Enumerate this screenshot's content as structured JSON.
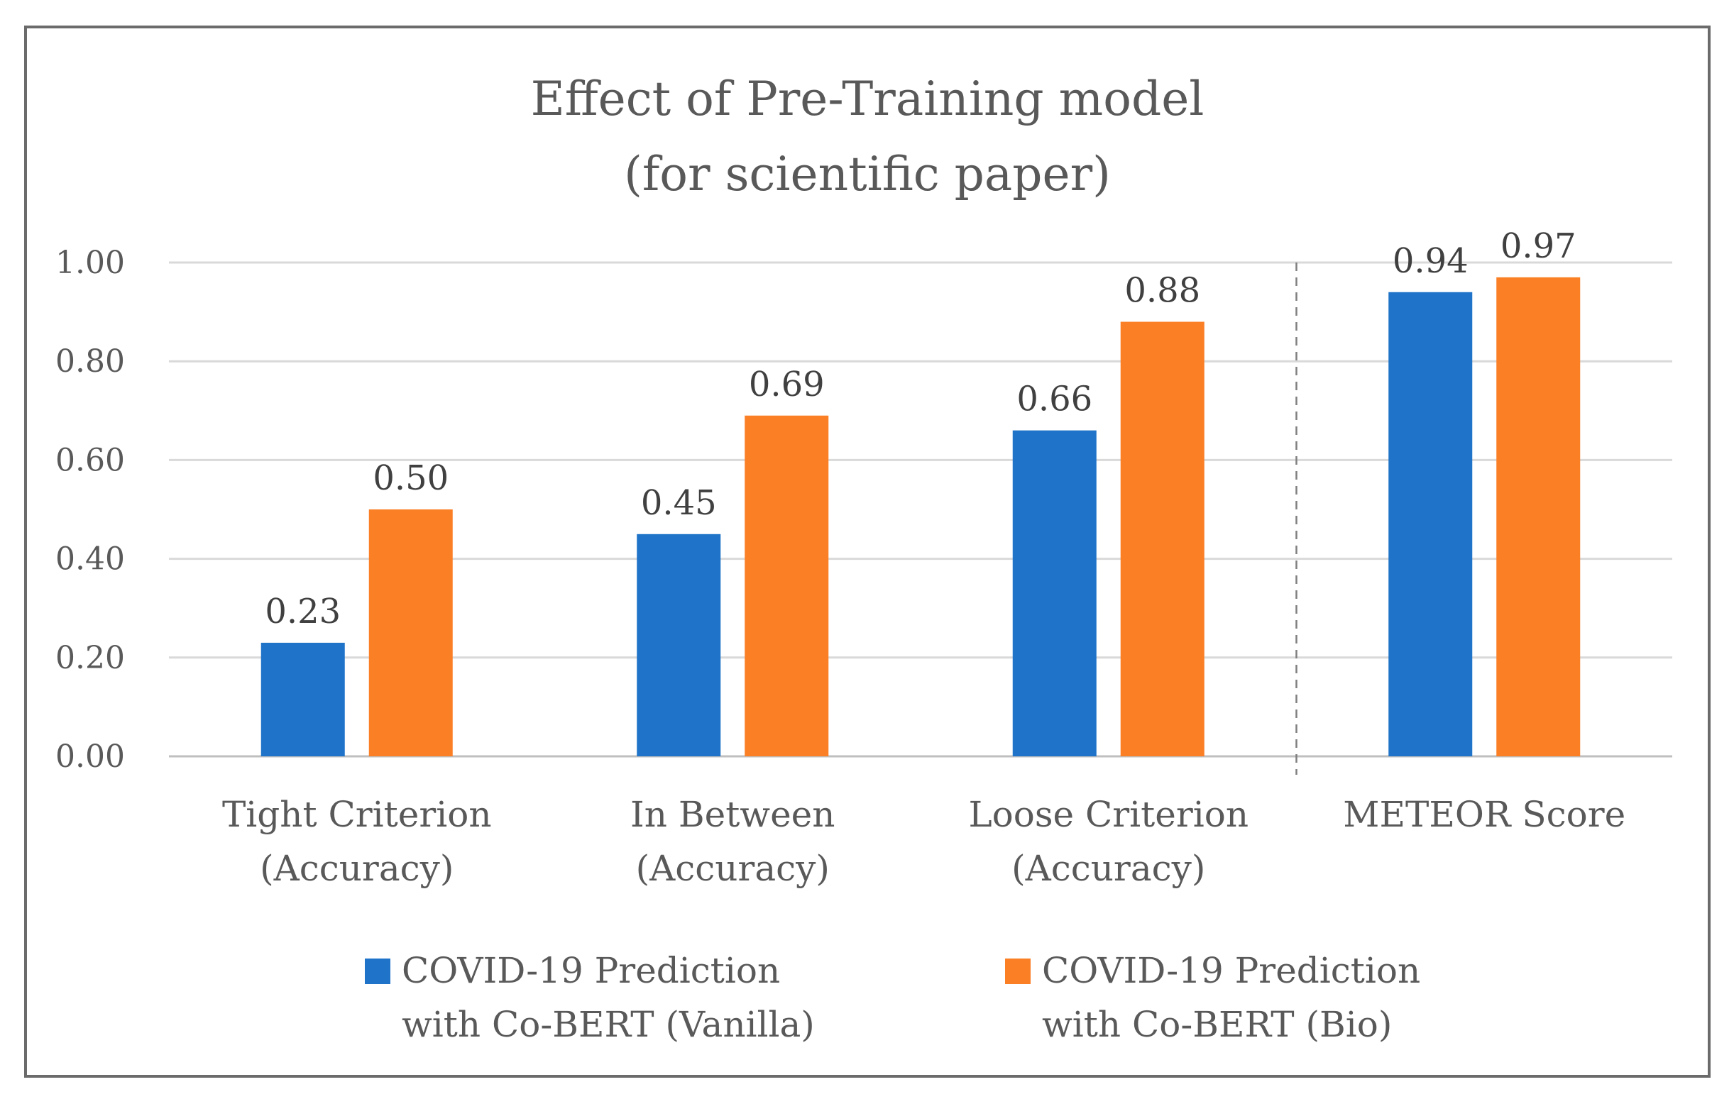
{
  "chart_data": {
    "type": "bar",
    "title": "Effect of Pre-Training model",
    "subtitle": "(for scientific paper)",
    "categories": [
      [
        "Tight Criterion",
        "(Accuracy)"
      ],
      [
        "In Between",
        "(Accuracy)"
      ],
      [
        "Loose Criterion",
        "(Accuracy)"
      ],
      [
        "METEOR Score"
      ]
    ],
    "series": [
      {
        "name": "COVID-19 Prediction with Co-BERT (Vanilla)",
        "legend_lines": [
          "COVID-19 Prediction",
          "with Co-BERT (Vanilla)"
        ],
        "color": "#1f73c8",
        "values": [
          0.23,
          0.45,
          0.66,
          0.94
        ]
      },
      {
        "name": "COVID-19 Prediction with Co-BERT (Bio)",
        "legend_lines": [
          "COVID-19 Prediction",
          "with Co-BERT (Bio)"
        ],
        "color": "#fb7f25",
        "values": [
          0.5,
          0.69,
          0.88,
          0.97
        ]
      }
    ],
    "ylim": [
      0,
      1
    ],
    "yticks": [
      0,
      0.2,
      0.4,
      0.6,
      0.8,
      1.0
    ],
    "grid": true,
    "legend_position": "bottom",
    "separator_after_category": 2
  }
}
